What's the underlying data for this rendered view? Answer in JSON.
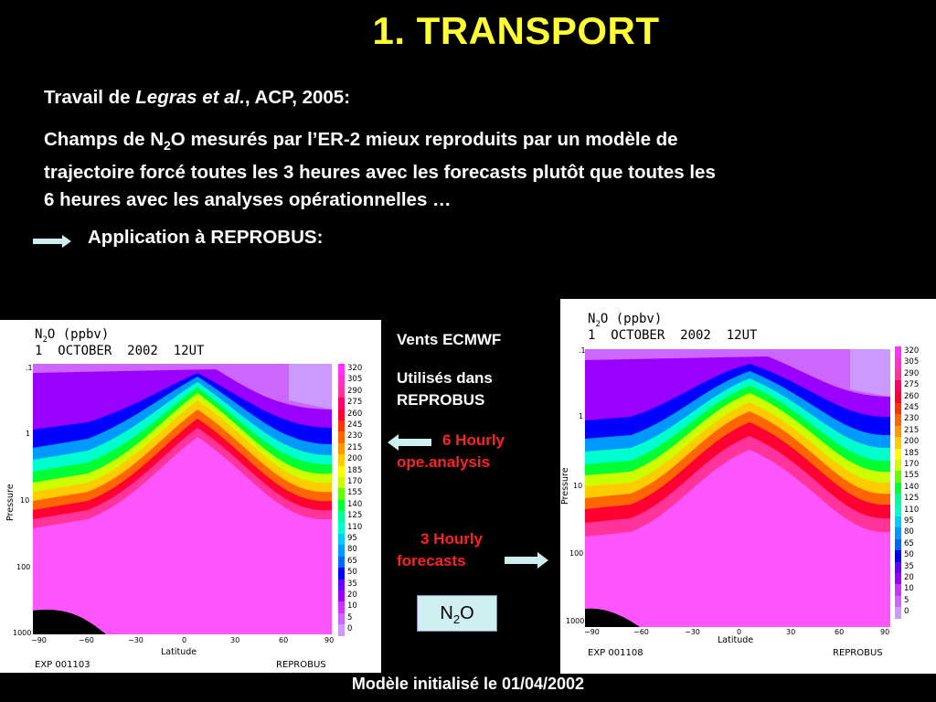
{
  "title": "1. TRANSPORT",
  "ref": {
    "prefix": "Travail de ",
    "authors": "Legras et al.",
    "suffix": ", ACP, 2005:"
  },
  "para": {
    "line1_pre": "Champs de N",
    "sub": "2",
    "line1_post": "O mesurés par l’ER-2 mieux reproduits par un modèle de",
    "line2": "trajectoire forcé toutes les 3 heures avec les forecasts plutôt que toutes les",
    "line3": "6 heures avec les analyses opérationnelles …"
  },
  "application": "Application à REPROBUS:",
  "middle": {
    "vents": "Vents ECMWF",
    "utilises1": "Utilisés dans",
    "utilises2": "REPROBUS",
    "six1": "6 Hourly",
    "six2": "ope.analysis",
    "three1": "3 Hourly",
    "three2": "forecasts",
    "box_pre": "N",
    "box_sub": "2",
    "box_post": "O"
  },
  "footer": "Modèle initialisé le 01/04/2002",
  "panel_common": {
    "title1_pre": "N",
    "title1_sub": "2",
    "title1_post": "O (ppbv)",
    "title2": "1  OCTOBER  2002  12UT",
    "ylabel": "Pressure",
    "xlabel": "Latitude",
    "right_label": "REPROBUS",
    "yticks": [
      ".1",
      "1",
      "10",
      "100",
      "1000"
    ],
    "xticks": [
      "−90",
      "−60",
      "−30",
      "0",
      "30",
      "60",
      "90"
    ],
    "legend": [
      "320",
      "305",
      "290",
      "275",
      "260",
      "245",
      "230",
      "215",
      "200",
      "185",
      "170",
      "155",
      "140",
      "125",
      "110",
      "95",
      "80",
      "65",
      "50",
      "35",
      "20",
      "10",
      "5",
      "0"
    ],
    "legend_colors": [
      "#ff33ff",
      "#ff33cc",
      "#ff3399",
      "#ff0066",
      "#ff0033",
      "#ff3300",
      "#ff6600",
      "#ff9900",
      "#ffcc00",
      "#ffff00",
      "#ccff00",
      "#66ff00",
      "#00ff33",
      "#00ff99",
      "#00ffcc",
      "#00ccff",
      "#0099ff",
      "#0066ff",
      "#0000ff",
      "#6600ff",
      "#9900ff",
      "#cc33ff",
      "#cc66ff",
      "#cc99ff"
    ]
  },
  "panel_left": {
    "exp": "EXP 001103"
  },
  "panel_right": {
    "exp": "EXP 001108"
  }
}
